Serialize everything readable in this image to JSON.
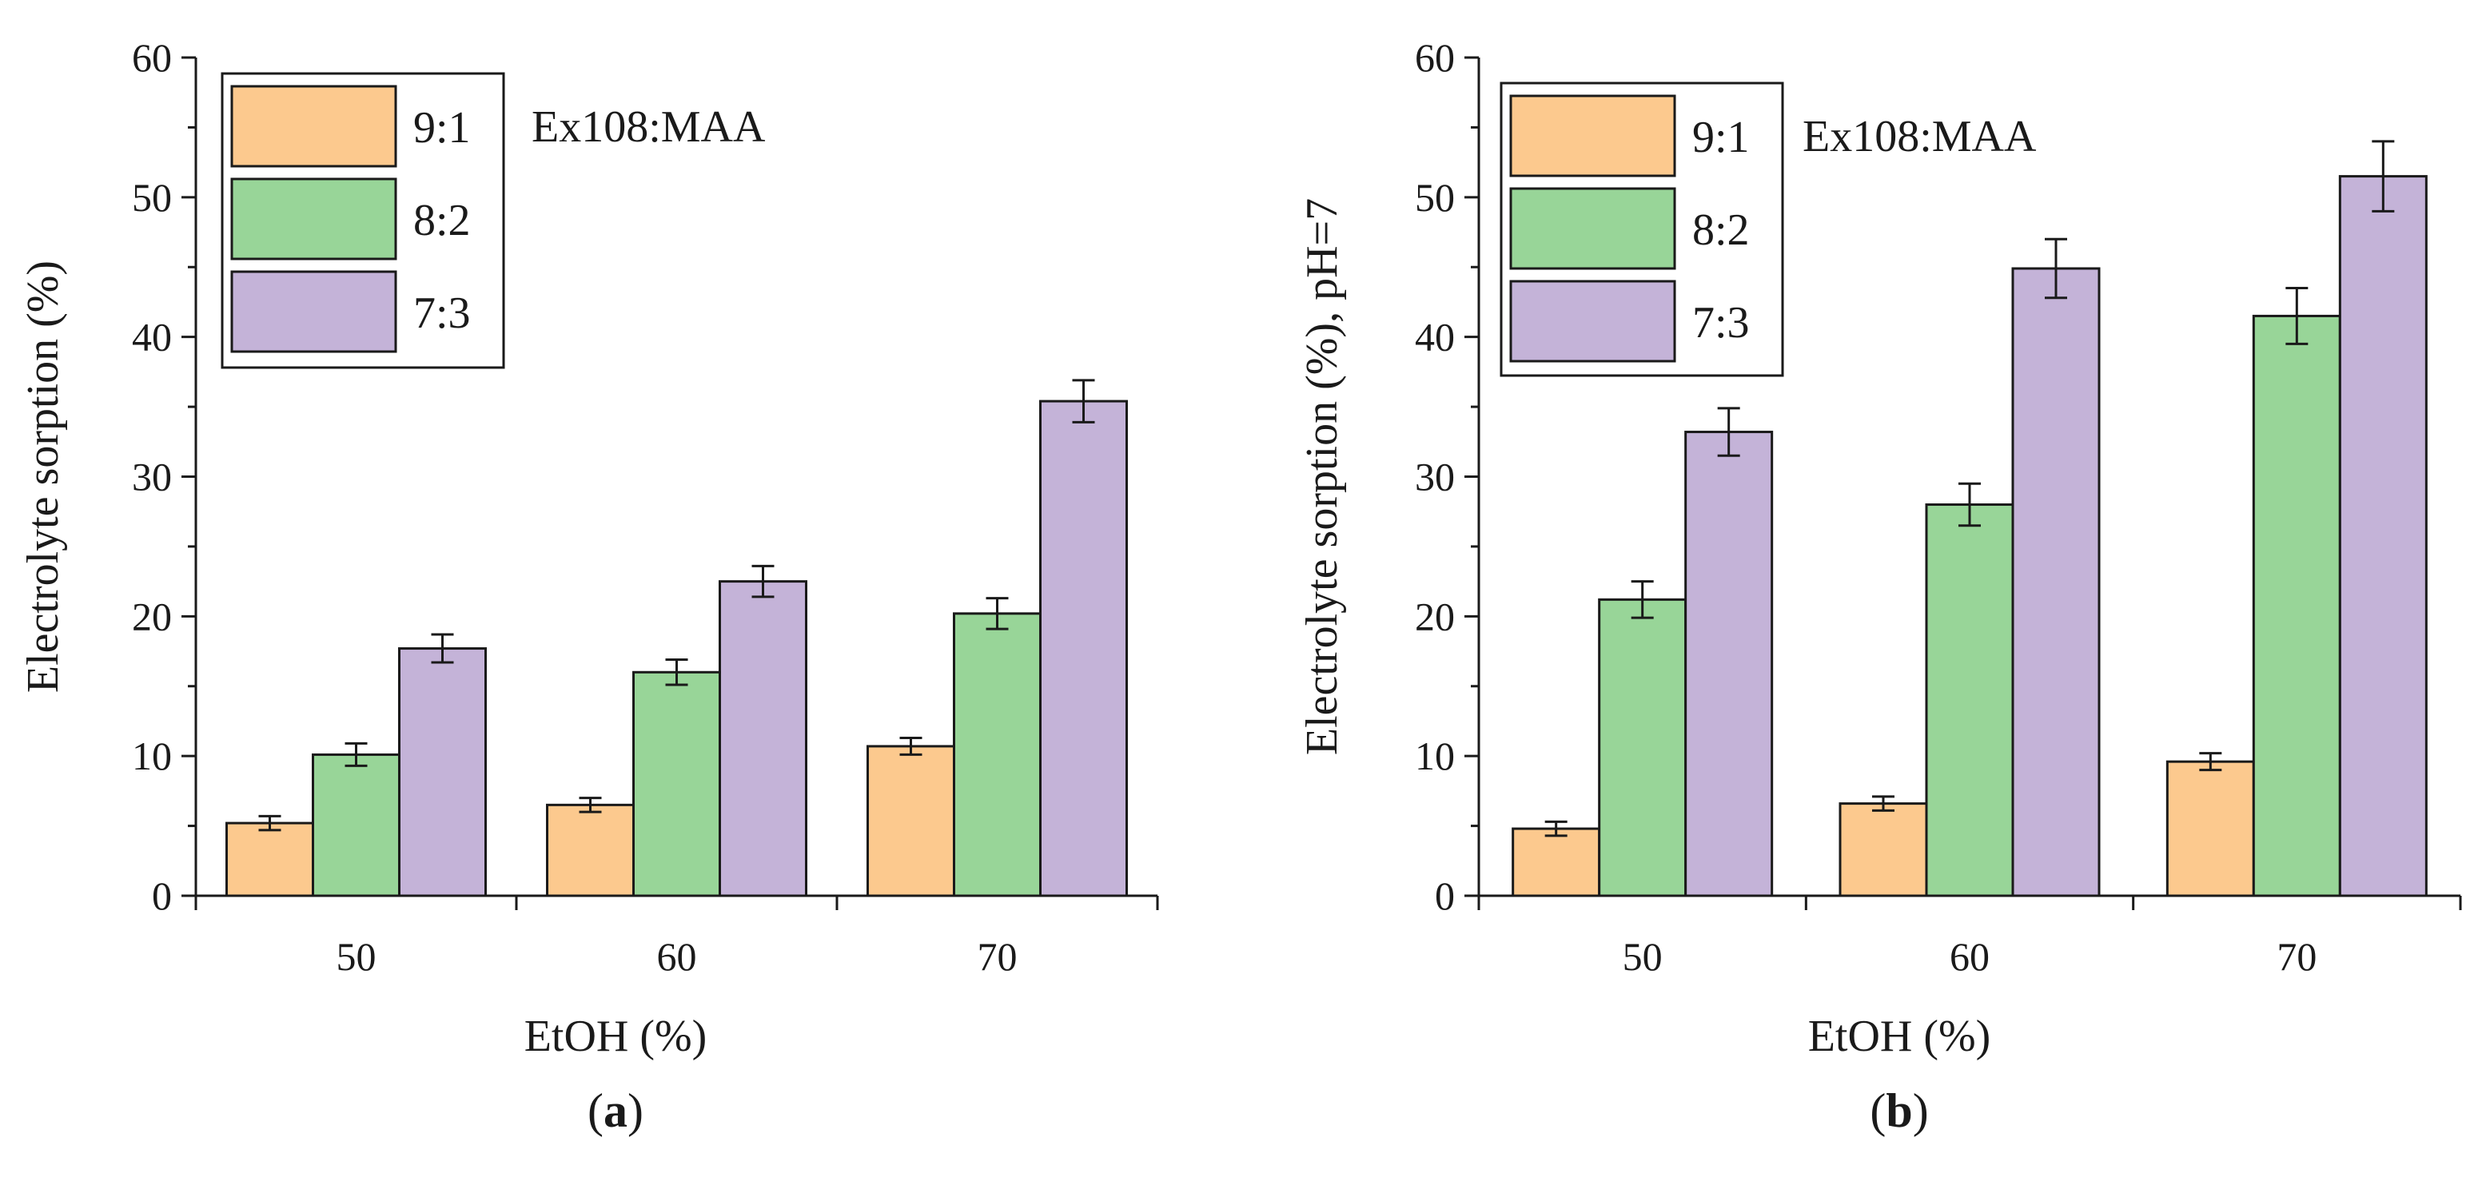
{
  "colors": {
    "series": [
      "#fcc98e",
      "#98d598",
      "#c4b3d8"
    ],
    "stroke": "#1a1a1a"
  },
  "chart_data": [
    {
      "id": "a",
      "type": "bar",
      "panel_label": {
        "open": "(",
        "letter": "a",
        "close": ")"
      },
      "categories": [
        "50",
        "60",
        "70"
      ],
      "series": [
        {
          "name": "9:1",
          "values": [
            5.2,
            6.5,
            10.7
          ],
          "errors": [
            0.5,
            0.5,
            0.6
          ]
        },
        {
          "name": "8:2",
          "values": [
            10.1,
            16.0,
            20.2
          ],
          "errors": [
            0.8,
            0.9,
            1.1
          ]
        },
        {
          "name": "7:3",
          "values": [
            17.7,
            22.5,
            35.4
          ],
          "errors": [
            1.0,
            1.1,
            1.5
          ]
        }
      ],
      "legend_title": "Ex108:MAA",
      "xlabel": "EtOH (%)",
      "ylabel": "Electrolyte sorption (%)",
      "ylim": [
        0,
        60
      ],
      "yticks": [
        "0",
        "10",
        "20",
        "30",
        "40",
        "50",
        "60"
      ]
    },
    {
      "id": "b",
      "type": "bar",
      "panel_label": {
        "open": "(",
        "letter": "b",
        "close": ")"
      },
      "categories": [
        "50",
        "60",
        "70"
      ],
      "series": [
        {
          "name": "9:1",
          "values": [
            4.8,
            6.6,
            9.6
          ],
          "errors": [
            0.5,
            0.5,
            0.6
          ]
        },
        {
          "name": "8:2",
          "values": [
            21.2,
            28.0,
            41.5
          ],
          "errors": [
            1.3,
            1.5,
            2.0
          ]
        },
        {
          "name": "7:3",
          "values": [
            33.2,
            44.9,
            51.5
          ],
          "errors": [
            1.7,
            2.1,
            2.5
          ]
        }
      ],
      "legend_title": "Ex108:MAA",
      "xlabel": "EtOH (%)",
      "ylabel": "Electrolyte sorption (%), pH=7",
      "ylim": [
        0,
        60
      ],
      "yticks": [
        "0",
        "10",
        "20",
        "30",
        "40",
        "50",
        "60"
      ]
    }
  ]
}
